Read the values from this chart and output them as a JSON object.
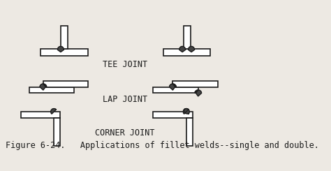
{
  "caption": "Figure 6-24.   Applications of fillet welds--single and double.",
  "labels": {
    "tee": "TEE JOINT",
    "lap": "LAP JOINT",
    "corner": "CORNER JOINT"
  },
  "bg_color": "#ede9e3",
  "line_color": "#1a1a1a",
  "lw": 1.2,
  "caption_fontsize": 8.5,
  "label_fontsize": 8.5
}
